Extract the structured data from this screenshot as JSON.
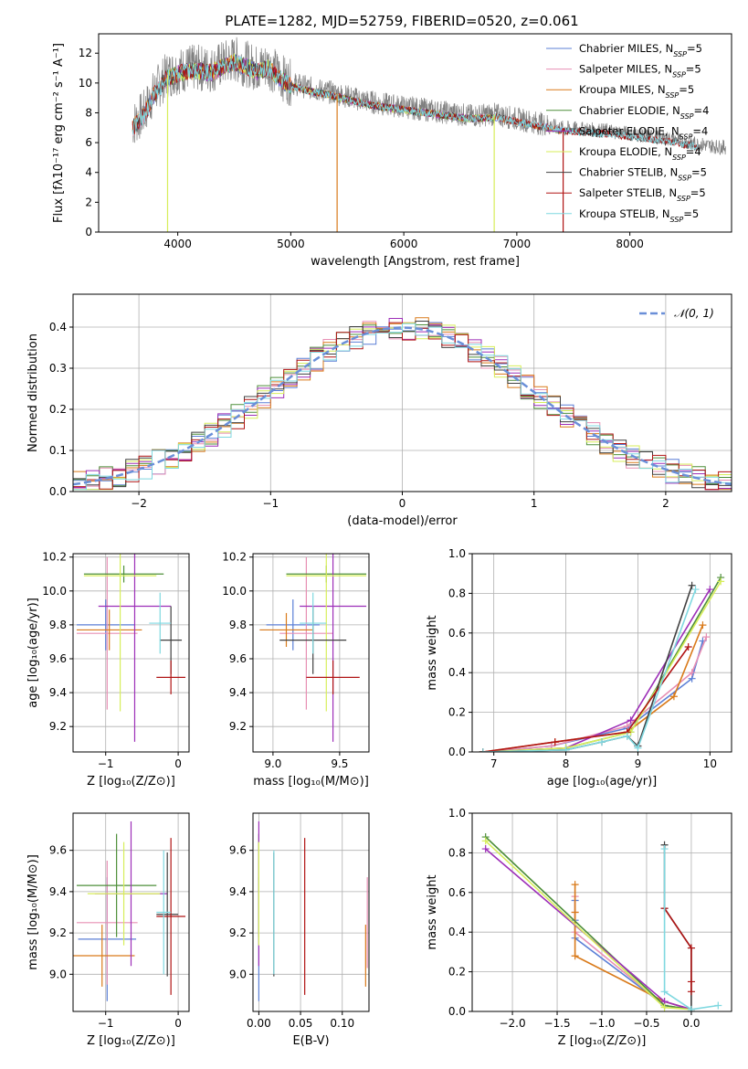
{
  "figure": {
    "title": "PLATE=1282, MJD=52759, FIBERID=0520, z=0.061"
  },
  "colors": {
    "Chabrier MILES": "#5b7fd6",
    "Salpeter MILES": "#e78fb4",
    "Kroupa MILES": "#d97a1a",
    "Chabrier ELODIE": "#4e8f3a",
    "Salpeter ELODIE": "#9d2fb8",
    "Kroupa ELODIE": "#d7ee5a",
    "Chabrier STELIB": "#404040",
    "Salpeter STELIB": "#b01414",
    "Kroupa STELIB": "#7fd8e0"
  },
  "chart_data": [
    {
      "id": "spectrum",
      "type": "line",
      "xlabel": "wavelength [Angstrom, rest frame]",
      "ylabel": "Flux [fλ10⁻¹⁷ erg cm⁻² s⁻¹ A⁻¹]",
      "xlim": [
        3300,
        8900
      ],
      "ylim": [
        0,
        13.3
      ],
      "xticks": [
        4000,
        5000,
        6000,
        7000,
        8000
      ],
      "yticks": [
        0,
        2,
        4,
        6,
        8,
        10,
        12
      ],
      "grid": false,
      "legend_position": "top-right",
      "data_color": "#808080",
      "data_x": [
        3600,
        3700,
        3800,
        3900,
        4000,
        4100,
        4200,
        4300,
        4400,
        4500,
        4600,
        4700,
        4800,
        4900,
        5000,
        5200,
        5400,
        5600,
        5800,
        6000,
        6200,
        6400,
        6600,
        6800,
        7000,
        7200,
        7400,
        7600,
        7800,
        8000,
        8200,
        8400,
        8600,
        8800
      ],
      "data_y": [
        7.2,
        8.0,
        9.5,
        10.5,
        10.8,
        11.0,
        11.0,
        10.9,
        11.3,
        11.6,
        11.3,
        11.0,
        11.2,
        10.5,
        10.0,
        9.6,
        9.3,
        8.9,
        8.6,
        8.4,
        8.2,
        8.0,
        7.8,
        7.9,
        7.6,
        7.3,
        7.0,
        6.9,
        6.8,
        6.6,
        6.4,
        6.2,
        5.9,
        5.7
      ],
      "series": [
        {
          "name": "Chabrier MILES, N_SSP=5",
          "model": "Chabrier MILES",
          "range": [
            3600,
            7400
          ]
        },
        {
          "name": "Salpeter MILES, N_SSP=5",
          "model": "Salpeter MILES",
          "range": [
            3600,
            7400
          ]
        },
        {
          "name": "Kroupa MILES, N_SSP=5",
          "model": "Kroupa MILES",
          "range": [
            3600,
            7400
          ]
        },
        {
          "name": "Chabrier ELODIE, N_SSP=4",
          "model": "Chabrier ELODIE",
          "range": [
            3900,
            6800
          ]
        },
        {
          "name": "Salpeter ELODIE, N_SSP=4",
          "model": "Salpeter ELODIE",
          "range": [
            3900,
            6800
          ]
        },
        {
          "name": "Kroupa ELODIE, N_SSP=4",
          "model": "Kroupa ELODIE",
          "range": [
            3900,
            6800
          ]
        },
        {
          "name": "Chabrier STELIB, N_SSP=5",
          "model": "Chabrier STELIB",
          "range": [
            3600,
            8600
          ]
        },
        {
          "name": "Salpeter STELIB, N_SSP=5",
          "model": "Salpeter STELIB",
          "range": [
            3600,
            8600
          ]
        },
        {
          "name": "Kroupa STELIB, N_SSP=5",
          "model": "Kroupa STELIB",
          "range": [
            3600,
            8600
          ]
        }
      ],
      "dropouts": [
        {
          "x": 3910,
          "model": "Kroupa ELODIE"
        },
        {
          "x": 5410,
          "model": "Kroupa MILES"
        },
        {
          "x": 6800,
          "model": "Kroupa ELODIE"
        },
        {
          "x": 7410,
          "model": "Salpeter STELIB"
        }
      ]
    },
    {
      "id": "residuals",
      "type": "line",
      "xlabel": "(data-model)/error",
      "ylabel": "Normed distribution",
      "xlim": [
        -2.5,
        2.5
      ],
      "ylim": [
        0,
        0.48
      ],
      "xticks": [
        -2,
        -1,
        0,
        1,
        2
      ],
      "xtick_labels": [
        "−2",
        "−1",
        "0",
        "1",
        "2"
      ],
      "yticks": [
        0,
        0.1,
        0.2,
        0.3,
        0.4
      ],
      "ytick_labels": [
        "0.0",
        "0.1",
        "0.2",
        "0.3",
        "0.4"
      ],
      "grid": true,
      "legend_position": "top-right",
      "legend": [
        "𝒩(0, 1)"
      ],
      "gaussian": {
        "mean": 0,
        "sigma": 1,
        "color": "#6a8fd8"
      }
    },
    {
      "id": "age-vs-Z",
      "type": "scatter",
      "xlabel": "Z [log₁₀(Z/Z⊙)]",
      "ylabel": "age  [log₁₀(age/yr)]",
      "xlim": [
        -1.45,
        0.15
      ],
      "ylim": [
        9.05,
        10.22
      ],
      "xticks": [
        -1,
        0
      ],
      "xtick_labels": [
        "−1",
        "0"
      ],
      "yticks": [
        9.2,
        9.4,
        9.6,
        9.8,
        10.0,
        10.2
      ],
      "ytick_labels": [
        "9.2",
        "9.4",
        "9.6",
        "9.8",
        "10.0",
        "10.2"
      ],
      "grid": true,
      "points": [
        {
          "model": "Chabrier MILES",
          "x": -1.0,
          "xerr": 0.4,
          "y": 9.8,
          "yerr": 0.15
        },
        {
          "model": "Salpeter MILES",
          "x": -0.98,
          "xerr": 0.42,
          "y": 9.75,
          "yerr": 0.45
        },
        {
          "model": "Kroupa MILES",
          "x": -0.95,
          "xerr": 0.45,
          "y": 9.77,
          "yerr": 0.12
        },
        {
          "model": "Chabrier ELODIE",
          "x": -0.75,
          "xerr": 0.55,
          "y": 10.1,
          "yerr": 0.05
        },
        {
          "model": "Salpeter ELODIE",
          "x": -0.6,
          "xerr": 0.5,
          "y": 9.91,
          "yerr": 0.8
        },
        {
          "model": "Kroupa ELODIE",
          "x": -0.8,
          "xerr": 0.5,
          "y": 10.09,
          "yerr": 0.8
        },
        {
          "model": "Chabrier STELIB",
          "x": -0.1,
          "xerr": 0.15,
          "y": 9.71,
          "yerr": 0.2
        },
        {
          "model": "Salpeter STELIB",
          "x": -0.1,
          "xerr": 0.2,
          "y": 9.49,
          "yerr": 0.1
        },
        {
          "model": "Kroupa STELIB",
          "x": -0.25,
          "xerr": 0.15,
          "y": 9.81,
          "yerr": 0.18
        }
      ]
    },
    {
      "id": "age-vs-mass",
      "type": "scatter",
      "xlabel": "mass [log₁₀(M/M⊙)]",
      "xlim": [
        8.85,
        9.72
      ],
      "ylim": [
        9.05,
        10.22
      ],
      "xticks": [
        9.0,
        9.5
      ],
      "xtick_labels": [
        "9.0",
        "9.5"
      ],
      "yticks": [
        9.2,
        9.4,
        9.6,
        9.8,
        10.0,
        10.2
      ],
      "ytick_labels": [
        "9.2",
        "9.4",
        "9.6",
        "9.8",
        "10.0",
        "10.2"
      ],
      "grid": true,
      "points": [
        {
          "model": "Chabrier MILES",
          "x": 9.15,
          "xerr": 0.2,
          "y": 9.8,
          "yerr": 0.15
        },
        {
          "model": "Salpeter MILES",
          "x": 9.25,
          "xerr": 0.2,
          "y": 9.75,
          "yerr": 0.45
        },
        {
          "model": "Kroupa MILES",
          "x": 9.1,
          "xerr": 0.2,
          "y": 9.77,
          "yerr": 0.1
        },
        {
          "model": "Chabrier ELODIE",
          "x": 9.4,
          "xerr": 0.3,
          "y": 10.1,
          "yerr": 0.05
        },
        {
          "model": "Salpeter ELODIE",
          "x": 9.45,
          "xerr": 0.25,
          "y": 9.91,
          "yerr": 0.8
        },
        {
          "model": "Kroupa ELODIE",
          "x": 9.4,
          "xerr": 0.3,
          "y": 10.09,
          "yerr": 0.8
        },
        {
          "model": "Chabrier STELIB",
          "x": 9.3,
          "xerr": 0.25,
          "y": 9.71,
          "yerr": 0.2
        },
        {
          "model": "Salpeter STELIB",
          "x": 9.45,
          "xerr": 0.2,
          "y": 9.49,
          "yerr": 0.1
        },
        {
          "model": "Kroupa STELIB",
          "x": 9.3,
          "xerr": 0.1,
          "y": 9.81,
          "yerr": 0.18
        }
      ]
    },
    {
      "id": "weight-vs-age",
      "type": "line",
      "xlabel": "age  [log₁₀(age/yr)]",
      "ylabel": "mass weight",
      "xlim": [
        6.7,
        10.3
      ],
      "ylim": [
        0,
        1.0
      ],
      "xticks": [
        7,
        8,
        9,
        10
      ],
      "yticks": [
        0,
        0.2,
        0.4,
        0.6,
        0.8,
        1.0
      ],
      "ytick_labels": [
        "0.0",
        "0.2",
        "0.4",
        "0.6",
        "0.8",
        "1.0"
      ],
      "grid": true,
      "series": [
        {
          "model": "Chabrier MILES",
          "x": [
            6.85,
            7.8,
            8.85,
            9.75,
            9.9
          ],
          "y": [
            0.0,
            0.03,
            0.12,
            0.37,
            0.56
          ]
        },
        {
          "model": "Salpeter MILES",
          "x": [
            6.85,
            7.8,
            8.85,
            9.75,
            9.95
          ],
          "y": [
            0.0,
            0.03,
            0.13,
            0.4,
            0.58
          ]
        },
        {
          "model": "Kroupa MILES",
          "x": [
            6.85,
            7.85,
            8.85,
            9.5,
            9.9
          ],
          "y": [
            0.0,
            0.05,
            0.1,
            0.28,
            0.64
          ]
        },
        {
          "model": "Chabrier ELODIE",
          "x": [
            6.85,
            8.0,
            8.9,
            10.15
          ],
          "y": [
            0.0,
            0.02,
            0.1,
            0.88
          ]
        },
        {
          "model": "Salpeter ELODIE",
          "x": [
            6.85,
            8.0,
            8.9,
            10.0
          ],
          "y": [
            0.0,
            0.02,
            0.16,
            0.82
          ]
        },
        {
          "model": "Kroupa ELODIE",
          "x": [
            6.85,
            8.0,
            8.9,
            10.15
          ],
          "y": [
            0.0,
            0.02,
            0.1,
            0.86
          ]
        },
        {
          "model": "Chabrier STELIB",
          "x": [
            6.85,
            8.0,
            8.5,
            8.85,
            9.0,
            9.75
          ],
          "y": [
            0.0,
            0.01,
            0.05,
            0.08,
            0.03,
            0.84
          ]
        },
        {
          "model": "Salpeter STELIB",
          "x": [
            6.85,
            7.85,
            8.85,
            9.7
          ],
          "y": [
            0.0,
            0.05,
            0.1,
            0.53
          ]
        },
        {
          "model": "Kroupa STELIB",
          "x": [
            6.85,
            8.0,
            8.5,
            8.85,
            9.0,
            9.8
          ],
          "y": [
            0.0,
            0.01,
            0.05,
            0.08,
            0.02,
            0.82
          ]
        }
      ]
    },
    {
      "id": "mass-vs-Z",
      "type": "scatter",
      "xlabel": "Z [log₁₀(Z/Z⊙)]",
      "ylabel": "mass [log₁₀(M/M⊙)]",
      "xlim": [
        -1.45,
        0.15
      ],
      "ylim": [
        8.82,
        9.78
      ],
      "xticks": [
        -1,
        0
      ],
      "xtick_labels": [
        "−1",
        "0"
      ],
      "yticks": [
        9.0,
        9.2,
        9.4,
        9.6
      ],
      "ytick_labels": [
        "9.0",
        "9.2",
        "9.4",
        "9.6"
      ],
      "grid": true,
      "points": [
        {
          "model": "Chabrier MILES",
          "x": -0.98,
          "xerr": 0.4,
          "y": 9.17,
          "yerr": 0.3
        },
        {
          "model": "Salpeter MILES",
          "x": -0.98,
          "xerr": 0.42,
          "y": 9.25,
          "yerr": 0.3
        },
        {
          "model": "Kroupa MILES",
          "x": -1.05,
          "xerr": 0.45,
          "y": 9.09,
          "yerr": 0.15
        },
        {
          "model": "Chabrier ELODIE",
          "x": -0.85,
          "xerr": 0.55,
          "y": 9.43,
          "yerr": 0.25
        },
        {
          "model": "Salpeter ELODIE",
          "x": -0.65,
          "xerr": 0.5,
          "y": 9.39,
          "yerr": 0.35
        },
        {
          "model": "Kroupa ELODIE",
          "x": -0.75,
          "xerr": 0.5,
          "y": 9.39,
          "yerr": 0.25
        },
        {
          "model": "Chabrier STELIB",
          "x": -0.15,
          "xerr": 0.15,
          "y": 9.29,
          "yerr": 0.3
        },
        {
          "model": "Salpeter STELIB",
          "x": -0.1,
          "xerr": 0.2,
          "y": 9.28,
          "yerr": 0.38
        },
        {
          "model": "Kroupa STELIB",
          "x": -0.2,
          "xerr": 0.1,
          "y": 9.3,
          "yerr": 0.3
        }
      ]
    },
    {
      "id": "mass-vs-ebv",
      "type": "scatter",
      "xlabel": "E(B-V)",
      "xlim": [
        -0.007,
        0.132
      ],
      "ylim": [
        8.82,
        9.78
      ],
      "xticks": [
        0,
        0.05,
        0.1
      ],
      "xtick_labels": [
        "0.00",
        "0.05",
        "0.10"
      ],
      "yticks": [
        9.0,
        9.2,
        9.4,
        9.6
      ],
      "ytick_labels": [
        "9.0",
        "9.2",
        "9.4",
        "9.6"
      ],
      "grid": true,
      "points": [
        {
          "model": "Chabrier MILES",
          "x": 0.0,
          "y": 9.17,
          "yerr": 0.3
        },
        {
          "model": "Salpeter MILES",
          "x": 0.13,
          "y": 9.25,
          "yerr": 0.22
        },
        {
          "model": "Kroupa MILES",
          "x": 0.128,
          "y": 9.09,
          "yerr": 0.15
        },
        {
          "model": "Chabrier ELODIE",
          "x": 0.0,
          "y": 9.43,
          "yerr": 0.25
        },
        {
          "model": "Salpeter ELODIE",
          "x": 0.0,
          "y": 9.39,
          "yerr": 0.35
        },
        {
          "model": "Kroupa ELODIE",
          "x": 0.0,
          "y": 9.39,
          "yerr": 0.25
        },
        {
          "model": "Chabrier STELIB",
          "x": 0.018,
          "y": 9.29,
          "yerr": 0.3
        },
        {
          "model": "Salpeter STELIB",
          "x": 0.055,
          "y": 9.28,
          "yerr": 0.38
        },
        {
          "model": "Kroupa STELIB",
          "x": 0.018,
          "y": 9.3,
          "yerr": 0.3
        }
      ]
    },
    {
      "id": "weight-vs-Z",
      "type": "line",
      "xlabel": "Z [log₁₀(Z/Z⊙)]",
      "ylabel": "mass weight",
      "xlim": [
        -2.45,
        0.45
      ],
      "ylim": [
        0,
        1.0
      ],
      "xticks": [
        -2.0,
        -1.5,
        -1.0,
        -0.5,
        0.0
      ],
      "xtick_labels": [
        "−2.0",
        "−1.5",
        "−1.0",
        "−0.5",
        "0.0"
      ],
      "yticks": [
        0,
        0.2,
        0.4,
        0.6,
        0.8,
        1.0
      ],
      "ytick_labels": [
        "0.0",
        "0.2",
        "0.4",
        "0.6",
        "0.8",
        "1.0"
      ],
      "grid": true,
      "series": [
        {
          "model": "Chabrier MILES",
          "x": [
            -1.3,
            -1.3,
            -1.3,
            -0.3,
            0.0
          ],
          "y": [
            0.56,
            0.46,
            0.37,
            0.03,
            0.01
          ]
        },
        {
          "model": "Salpeter MILES",
          "x": [
            -1.3,
            -1.3,
            -1.3,
            -0.3,
            0.0
          ],
          "y": [
            0.58,
            0.5,
            0.4,
            0.03,
            0.01
          ]
        },
        {
          "model": "Kroupa MILES",
          "x": [
            -1.3,
            -1.3,
            -1.3,
            -0.3,
            0.0
          ],
          "y": [
            0.64,
            0.5,
            0.28,
            0.05,
            0.01
          ]
        },
        {
          "model": "Chabrier ELODIE",
          "x": [
            -2.3,
            -0.3,
            0.0
          ],
          "y": [
            0.88,
            0.03,
            0.01
          ]
        },
        {
          "model": "Salpeter ELODIE",
          "x": [
            -2.3,
            -0.3,
            0.0
          ],
          "y": [
            0.82,
            0.05,
            0.01
          ]
        },
        {
          "model": "Kroupa ELODIE",
          "x": [
            -2.3,
            -0.3,
            0.0
          ],
          "y": [
            0.86,
            0.02,
            0.01
          ]
        },
        {
          "model": "Chabrier STELIB",
          "x": [
            -0.3,
            -0.3,
            0.0,
            0.0
          ],
          "y": [
            0.84,
            0.52,
            0.32,
            0.0
          ]
        },
        {
          "model": "Salpeter STELIB",
          "x": [
            -0.3,
            0.0,
            0.0,
            0.0
          ],
          "y": [
            0.52,
            0.32,
            0.15,
            0.1
          ]
        },
        {
          "model": "Kroupa STELIB",
          "x": [
            -0.3,
            -0.3,
            0.0,
            0.3
          ],
          "y": [
            0.82,
            0.1,
            0.01,
            0.03
          ]
        }
      ]
    }
  ]
}
